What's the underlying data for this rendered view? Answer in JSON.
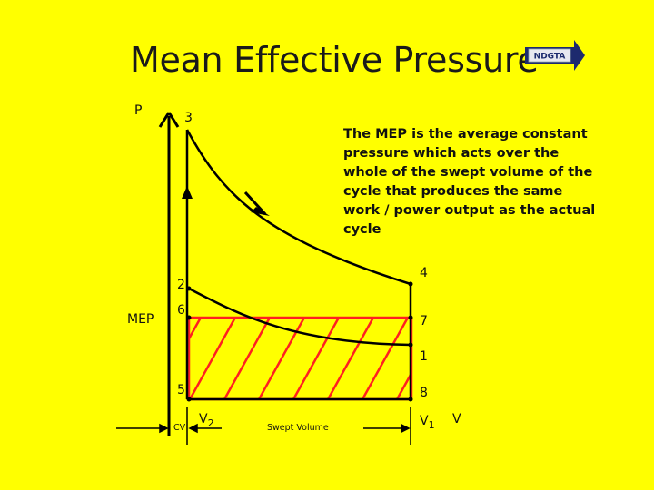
{
  "slide": {
    "title": "Mean Effective Pressure",
    "logo_text": "NDGTA",
    "description": "The MEP is the average constant pressure which acts over the whole of the swept volume of the cycle that produces the same work / power output as the actual cycle"
  },
  "diagram": {
    "axis_labels": {
      "pressure": "P",
      "volume": "V",
      "mep": "MEP"
    },
    "point_labels": {
      "p1": "1",
      "p2": "2",
      "p3": "3",
      "p4": "4",
      "p5": "5",
      "p6": "6",
      "p7": "7",
      "p8": "8"
    },
    "volume_labels": {
      "cv": "CV",
      "v2_base": "V",
      "v2_sub": "2",
      "v1_base": "V",
      "v1_sub": "1",
      "swept": "Swept Volume"
    },
    "colors": {
      "background": "#ffff00",
      "curve": "#000000",
      "mep_hatch": "#ff2020",
      "axis": "#000000"
    }
  }
}
